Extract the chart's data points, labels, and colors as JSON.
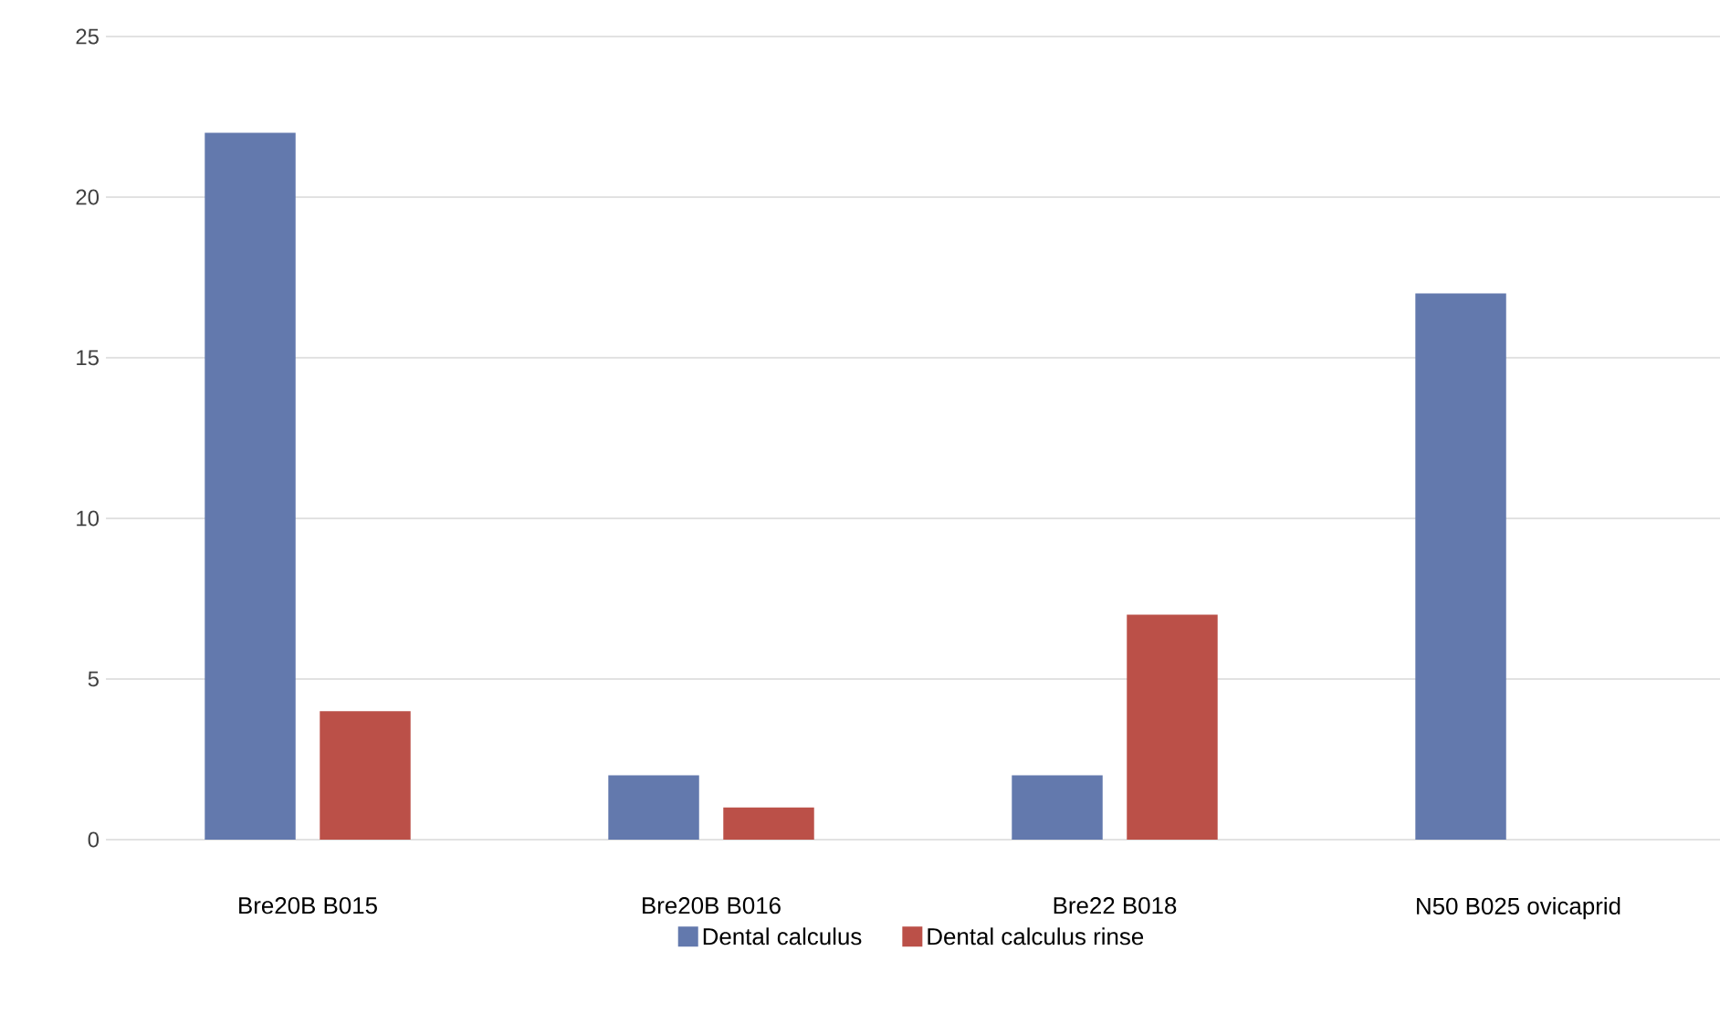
{
  "chart_data": {
    "type": "bar",
    "categories": [
      "Bre20B B015",
      "Bre20B B016",
      "Bre22 B018",
      "N50 B025 ovicaprid"
    ],
    "series": [
      {
        "name": "Dental calculus",
        "color": "#6379ad",
        "values": [
          22,
          2,
          2,
          17
        ]
      },
      {
        "name": "Dental calculus rinse",
        "color": "#bb5048",
        "values": [
          4,
          1,
          7,
          null
        ]
      }
    ],
    "ylim": [
      0,
      25
    ],
    "yticks": [
      0,
      5,
      10,
      15,
      20,
      25
    ],
    "grid": "y",
    "legend": "bottom"
  }
}
